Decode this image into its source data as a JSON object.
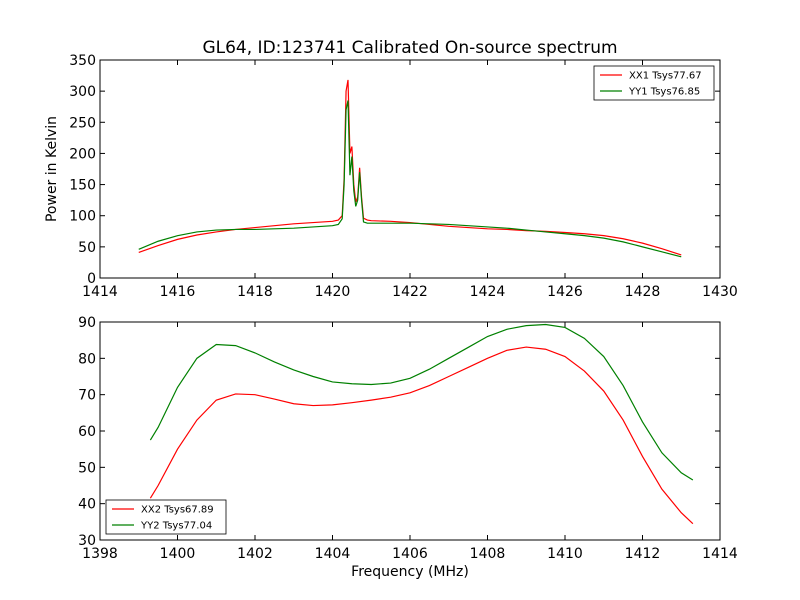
{
  "chart_data": [
    {
      "type": "line",
      "title": "GL64, ID:123741 Calibrated On-source spectrum",
      "xlabel": "",
      "ylabel": "Power in Kelvin",
      "xlim": [
        1414,
        1430
      ],
      "ylim": [
        0,
        350
      ],
      "xticks": [
        "1414",
        "1416",
        "1418",
        "1420",
        "1422",
        "1424",
        "1426",
        "1428",
        "1430"
      ],
      "yticks": [
        "0",
        "50",
        "100",
        "150",
        "200",
        "250",
        "300",
        "350"
      ],
      "legend_position": "top-right",
      "grid": false,
      "series": [
        {
          "name": "XX1 Tsys77.67",
          "color": "#ff0000",
          "x": [
            1415.0,
            1415.5,
            1416.0,
            1416.5,
            1417.0,
            1417.5,
            1418.0,
            1418.5,
            1419.0,
            1419.5,
            1420.0,
            1420.15,
            1420.25,
            1420.3,
            1420.35,
            1420.4,
            1420.45,
            1420.5,
            1420.55,
            1420.6,
            1420.65,
            1420.7,
            1420.75,
            1420.8,
            1420.9,
            1421.0,
            1421.5,
            1422.0,
            1422.5,
            1423.0,
            1423.5,
            1424.0,
            1424.5,
            1425.0,
            1425.5,
            1426.0,
            1426.5,
            1427.0,
            1427.5,
            1428.0,
            1428.5,
            1429.0
          ],
          "y": [
            41,
            52,
            62,
            69,
            74,
            78,
            81,
            84,
            87,
            89,
            91,
            93,
            100,
            160,
            300,
            318,
            200,
            211,
            150,
            122,
            130,
            177,
            130,
            96,
            93,
            92,
            91,
            89,
            86,
            83,
            81,
            79,
            78,
            76,
            75,
            73,
            71,
            68,
            63,
            56,
            47,
            37
          ]
        },
        {
          "name": "YY1 Tsys76.85",
          "color": "#008000",
          "x": [
            1415.0,
            1415.5,
            1416.0,
            1416.5,
            1417.0,
            1417.5,
            1418.0,
            1418.5,
            1419.0,
            1419.5,
            1420.0,
            1420.15,
            1420.25,
            1420.3,
            1420.35,
            1420.4,
            1420.45,
            1420.5,
            1420.55,
            1420.6,
            1420.65,
            1420.7,
            1420.75,
            1420.8,
            1420.9,
            1421.0,
            1421.5,
            1422.0,
            1422.5,
            1423.0,
            1423.5,
            1424.0,
            1424.5,
            1425.0,
            1425.5,
            1426.0,
            1426.5,
            1427.0,
            1427.5,
            1428.0,
            1428.5,
            1429.0
          ],
          "y": [
            46,
            59,
            68,
            74,
            77,
            78,
            78,
            79,
            80,
            82,
            84,
            86,
            95,
            150,
            270,
            285,
            165,
            195,
            140,
            115,
            125,
            170,
            125,
            90,
            88,
            88,
            88,
            88,
            87,
            86,
            84,
            82,
            80,
            77,
            74,
            71,
            68,
            64,
            58,
            50,
            42,
            34
          ]
        }
      ]
    },
    {
      "type": "line",
      "title": "",
      "xlabel": "Frequency (MHz)",
      "ylabel": "",
      "xlim": [
        1398,
        1414
      ],
      "ylim": [
        30,
        90
      ],
      "xticks": [
        "1398",
        "1400",
        "1402",
        "1404",
        "1406",
        "1408",
        "1410",
        "1412",
        "1414"
      ],
      "yticks": [
        "30",
        "40",
        "50",
        "60",
        "70",
        "80",
        "90"
      ],
      "legend_position": "lower-left",
      "grid": false,
      "series": [
        {
          "name": "XX2 Tsys67.89",
          "color": "#ff0000",
          "x": [
            1399.3,
            1399.5,
            1400.0,
            1400.5,
            1401.0,
            1401.5,
            1402.0,
            1402.5,
            1403.0,
            1403.5,
            1404.0,
            1404.5,
            1405.0,
            1405.5,
            1406.0,
            1406.5,
            1407.0,
            1407.5,
            1408.0,
            1408.5,
            1409.0,
            1409.5,
            1410.0,
            1410.5,
            1411.0,
            1411.5,
            1412.0,
            1412.5,
            1413.0,
            1413.3
          ],
          "y": [
            41.5,
            45,
            55,
            63,
            68.5,
            70.2,
            70,
            68.8,
            67.5,
            67,
            67.2,
            67.8,
            68.5,
            69.3,
            70.5,
            72.5,
            75,
            77.5,
            80,
            82.2,
            83.1,
            82.5,
            80.5,
            76.5,
            71,
            63,
            53,
            44,
            37.5,
            34.5
          ]
        },
        {
          "name": "YY2 Tsys77.04",
          "color": "#008000",
          "x": [
            1399.3,
            1399.5,
            1400.0,
            1400.5,
            1401.0,
            1401.5,
            1402.0,
            1402.5,
            1403.0,
            1403.5,
            1404.0,
            1404.5,
            1405.0,
            1405.5,
            1406.0,
            1406.5,
            1407.0,
            1407.5,
            1408.0,
            1408.5,
            1409.0,
            1409.5,
            1410.0,
            1410.5,
            1411.0,
            1411.5,
            1412.0,
            1412.5,
            1413.0,
            1413.3
          ],
          "y": [
            57.5,
            61,
            72,
            80,
            83.8,
            83.5,
            81.5,
            79,
            76.8,
            75,
            73.5,
            73,
            72.8,
            73.2,
            74.5,
            77,
            80,
            83,
            86,
            88,
            89,
            89.3,
            88.5,
            85.5,
            80.5,
            72.5,
            62.5,
            54,
            48.5,
            46.5
          ]
        }
      ]
    }
  ]
}
